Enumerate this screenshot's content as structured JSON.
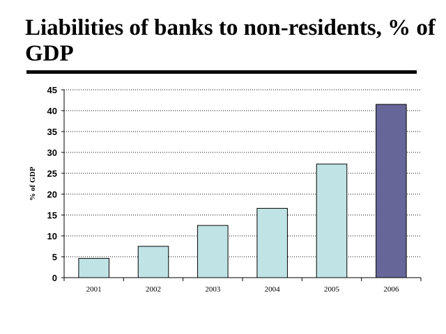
{
  "slide": {
    "title": "Liabilities of banks to non-residents, % of GDP"
  },
  "chart_data": {
    "type": "bar",
    "title": "",
    "xlabel": "",
    "ylabel": "% of GDP",
    "categories": [
      "2001",
      "2002",
      "2003",
      "2004",
      "2005",
      "2006"
    ],
    "values": [
      4.6,
      7.5,
      12.5,
      16.6,
      27.2,
      41.5
    ],
    "ylim": [
      0,
      45
    ],
    "yticks": [
      0,
      5,
      10,
      15,
      20,
      25,
      30,
      35,
      40,
      45
    ],
    "grid": "horizontal-dotted",
    "legend": "none",
    "colors": {
      "bar": "#C0E4E6",
      "highlight_bar": "#666699",
      "highlight_index": 5,
      "bar_stroke": "#000000",
      "grid": "#000000"
    }
  }
}
